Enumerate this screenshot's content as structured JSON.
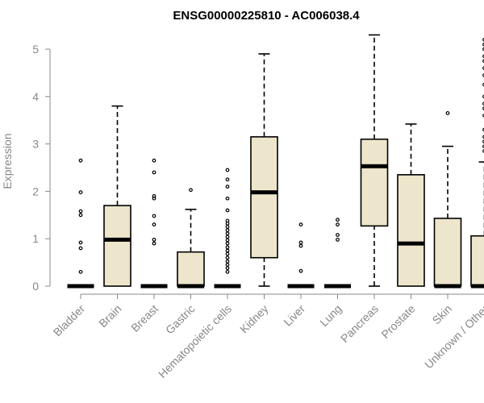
{
  "chart_data": {
    "type": "box",
    "title": "ENSG00000225810 - AC006038.4",
    "ylabel": "Expression",
    "ylim": [
      0,
      5.3
    ],
    "yticks": [
      "0",
      "1",
      "2",
      "3",
      "4",
      "5"
    ],
    "groups": [
      {
        "name": "Bladder",
        "min": 0,
        "q1": 0,
        "median": 0,
        "q3": 0,
        "max": 0,
        "outliers": [
          0.3,
          0.8,
          0.92,
          1.5,
          1.58,
          1.98,
          2.65
        ]
      },
      {
        "name": "Brain",
        "min": 0,
        "q1": 0,
        "median": 0.98,
        "q3": 1.7,
        "max": 3.8,
        "outliers": []
      },
      {
        "name": "Breast",
        "min": 0,
        "q1": 0,
        "median": 0,
        "q3": 0,
        "max": 0,
        "outliers": [
          0.9,
          0.98,
          1.3,
          1.48,
          1.85,
          1.9,
          2.4,
          2.65
        ]
      },
      {
        "name": "Gastric",
        "min": 0,
        "q1": 0,
        "median": 0,
        "q3": 0.72,
        "max": 1.62,
        "outliers": [
          2.03
        ]
      },
      {
        "name": "Hematopoietic cells",
        "min": 0,
        "q1": 0,
        "median": 0,
        "q3": 0,
        "max": 0,
        "outliers": [
          0.3,
          0.38,
          0.45,
          0.52,
          0.6,
          0.68,
          0.75,
          0.82,
          0.9,
          0.97,
          1.04,
          1.11,
          1.18,
          1.25,
          1.32,
          1.38,
          1.6,
          1.85,
          2.1,
          2.25,
          2.45
        ]
      },
      {
        "name": "Kidney",
        "min": 0,
        "q1": 0.6,
        "median": 1.98,
        "q3": 3.15,
        "max": 4.9,
        "outliers": []
      },
      {
        "name": "Liver",
        "min": 0,
        "q1": 0,
        "median": 0,
        "q3": 0,
        "max": 0,
        "outliers": [
          0.32,
          0.85,
          0.92,
          1.3
        ]
      },
      {
        "name": "Lung",
        "min": 0,
        "q1": 0,
        "median": 0,
        "q3": 0,
        "max": 0,
        "outliers": [
          0.98,
          1.08,
          1.3,
          1.4
        ]
      },
      {
        "name": "Pancreas",
        "min": 0,
        "q1": 1.27,
        "median": 2.53,
        "q3": 3.1,
        "max": 5.3,
        "outliers": []
      },
      {
        "name": "Prostate",
        "min": 0,
        "q1": 0,
        "median": 0.9,
        "q3": 2.35,
        "max": 3.42,
        "outliers": []
      },
      {
        "name": "Skin",
        "min": 0,
        "q1": 0,
        "median": 0,
        "q3": 1.43,
        "max": 2.95,
        "outliers": [
          3.65
        ]
      },
      {
        "name": "Unknown / Other",
        "min": 0,
        "q1": 0,
        "median": 0,
        "q3": 1.06,
        "max": 2.62,
        "outliers": [
          2.85,
          2.95,
          3.05,
          3.15,
          3.3,
          3.6,
          3.75,
          3.85,
          4.0,
          4.25,
          4.45,
          4.6,
          4.75,
          4.85,
          5.0,
          5.1,
          5.2
        ]
      }
    ]
  }
}
